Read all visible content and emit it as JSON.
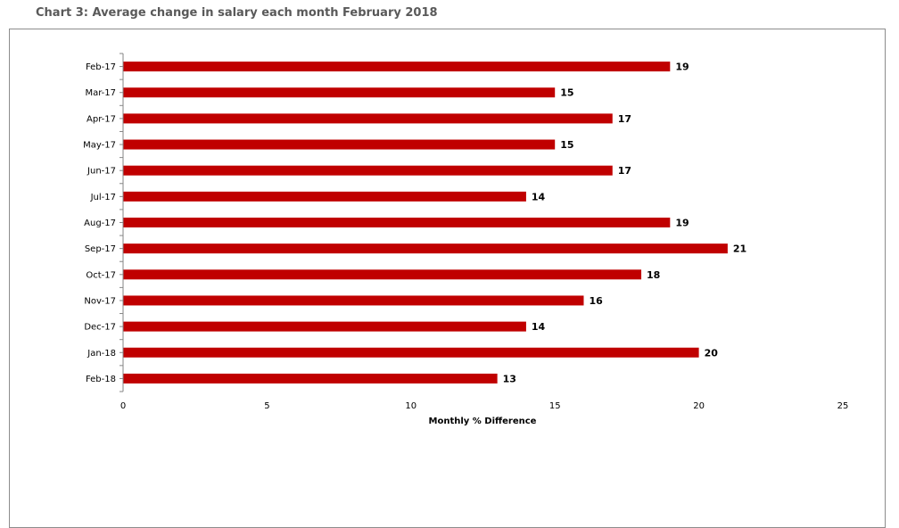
{
  "chart_data": {
    "type": "bar",
    "orientation": "horizontal",
    "title": "Chart 3: Average change in salary each month February 2018",
    "xlabel": "Monthly % Difference",
    "ylabel": "",
    "categories": [
      "Feb-17",
      "Mar-17",
      "Apr-17",
      "May-17",
      "Jun-17",
      "Jul-17",
      "Aug-17",
      "Sep-17",
      "Oct-17",
      "Nov-17",
      "Dec-17",
      "Jan-18",
      "Feb-18"
    ],
    "values": [
      19,
      15,
      17,
      15,
      17,
      14,
      19,
      21,
      18,
      16,
      14,
      20,
      13
    ],
    "xlim": [
      0,
      25
    ],
    "xticks": [
      0,
      5,
      10,
      15,
      20,
      25
    ],
    "grid": false,
    "legend": "none",
    "bar_color": "#C00000"
  }
}
